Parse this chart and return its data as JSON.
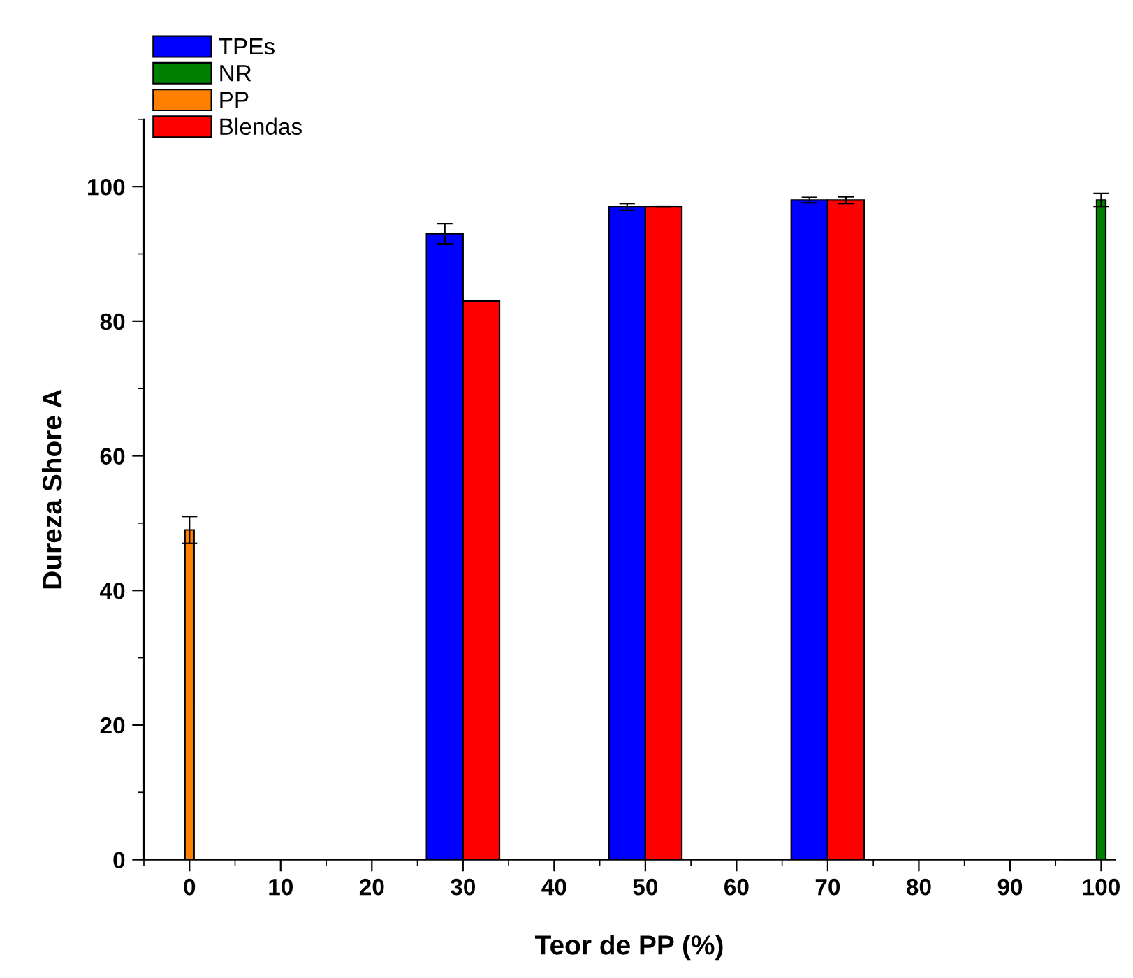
{
  "chart_data": {
    "type": "bar",
    "xlabel": "Teor de PP (%)",
    "ylabel": "Dureza Shore A",
    "xlim": [
      -5,
      101.5
    ],
    "ylim": [
      0,
      110
    ],
    "xticks": [
      0,
      10,
      20,
      30,
      40,
      50,
      60,
      70,
      80,
      90,
      100
    ],
    "yticks": [
      0,
      20,
      40,
      60,
      80,
      100
    ],
    "legend": "top left",
    "grid": false,
    "series": [
      {
        "name": "TPEs",
        "color": "#0000ff",
        "x": [
          28,
          48,
          68
        ],
        "values": [
          93,
          97,
          98
        ],
        "errors": [
          1.5,
          0.5,
          0.4
        ]
      },
      {
        "name": "NR",
        "color": "#008000",
        "x": [
          100
        ],
        "values": [
          98
        ],
        "errors": [
          1
        ]
      },
      {
        "name": "PP",
        "color": "#ff8000",
        "x": [
          0
        ],
        "values": [
          49
        ],
        "errors": [
          2
        ]
      },
      {
        "name": "Blendas",
        "color": "#ff0000",
        "x": [
          32,
          52,
          72
        ],
        "values": [
          83,
          97,
          98
        ],
        "errors": [
          null,
          null,
          0.5
        ]
      }
    ]
  }
}
